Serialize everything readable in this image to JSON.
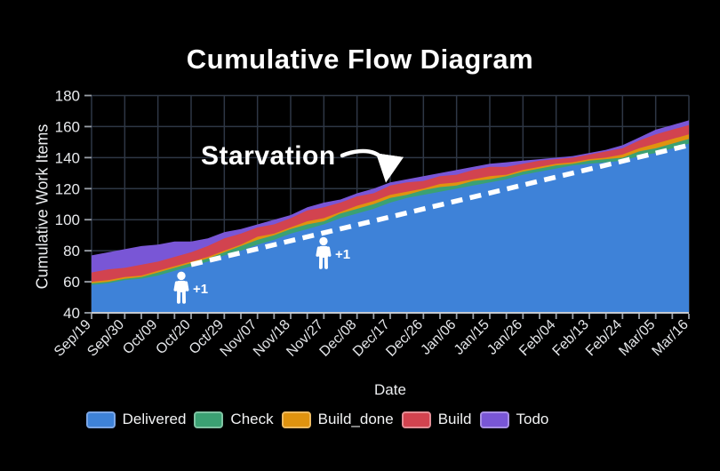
{
  "title": "Cumulative Flow Diagram",
  "chart_data": {
    "type": "area",
    "stacked": true,
    "title": "Cumulative Flow Diagram",
    "xlabel": "Date",
    "ylabel": "Cumulative Work Items",
    "ylim": [
      40,
      180
    ],
    "ytick_step": 20,
    "ytick_labels": [
      "40",
      "60",
      "80",
      "100",
      "120",
      "140",
      "160",
      "180"
    ],
    "grid": true,
    "legend_position": "bottom",
    "x_labels": [
      "Sep/19",
      "Sep/30",
      "Oct/09",
      "Oct/20",
      "Oct/29",
      "Nov/07",
      "Nov/18",
      "Nov/27",
      "Dec/08",
      "Dec/17",
      "Dec/26",
      "Jan/06",
      "Jan/15",
      "Jan/26",
      "Feb/04",
      "Feb/13",
      "Feb/24",
      "Mar/05",
      "Mar/16"
    ],
    "points_per_label_interval": 2,
    "series": [
      {
        "name": "Delivered",
        "color": "#3E82D8",
        "border_color": "#7CA6E5",
        "values": [
          58,
          59,
          61,
          62,
          64,
          67,
          70,
          73,
          77,
          80,
          84,
          87,
          91,
          94,
          97,
          101,
          104,
          107,
          111,
          114,
          116,
          118,
          120,
          122,
          124,
          126,
          129,
          131,
          133,
          135,
          136,
          137,
          138,
          141,
          143,
          146,
          149
        ]
      },
      {
        "name": "Check",
        "color": "#3BA173",
        "border_color": "#7FC3A2",
        "values": [
          1,
          1,
          1,
          1,
          2,
          2,
          2,
          2,
          2,
          3,
          3,
          3,
          3,
          3,
          2,
          3,
          3,
          3,
          3,
          2,
          3,
          3,
          2,
          3,
          2,
          2,
          2,
          2,
          2,
          1,
          2,
          2,
          2,
          3,
          3,
          3,
          3
        ]
      },
      {
        "name": "Build_done",
        "color": "#E0930F",
        "border_color": "#EDBA60",
        "values": [
          1,
          1,
          1,
          1,
          1,
          1,
          1,
          1,
          1,
          1,
          2,
          1,
          1,
          2,
          2,
          1,
          2,
          2,
          2,
          2,
          1,
          2,
          2,
          1,
          2,
          1,
          1,
          1,
          1,
          1,
          1,
          1,
          2,
          2,
          3,
          3,
          3
        ]
      },
      {
        "name": "Build",
        "color": "#D2434F",
        "border_color": "#E28D95",
        "values": [
          6,
          7,
          6,
          7,
          6,
          6,
          6,
          7,
          8,
          7,
          6,
          6,
          6,
          7,
          7,
          6,
          6,
          5,
          6,
          6,
          5,
          5,
          5,
          6,
          6,
          5,
          4,
          4,
          3,
          3,
          3,
          4,
          4,
          5,
          6,
          6,
          6
        ]
      },
      {
        "name": "Todo",
        "color": "#7956D6",
        "border_color": "#A88FE4",
        "values": [
          11,
          11,
          12,
          12,
          11,
          10,
          7,
          5,
          4,
          3,
          2,
          3,
          2,
          2,
          3,
          2,
          2,
          3,
          2,
          2,
          3,
          2,
          3,
          2,
          2,
          3,
          2,
          1,
          1,
          1,
          1,
          1,
          2,
          2,
          3,
          3,
          3
        ]
      }
    ],
    "trend_line": {
      "style": "dashed",
      "color": "#ffffff",
      "from_index": 6,
      "from_value": 71,
      "to_index": 36,
      "to_value": 148
    },
    "annotations": {
      "starvation": {
        "text": "Starvation"
      },
      "staff": [
        {
          "label": "+1",
          "x_index": 5.41,
          "value": 55.4
        },
        {
          "label": "+1",
          "x_index": 13.98,
          "value": 77.7
        }
      ]
    }
  }
}
